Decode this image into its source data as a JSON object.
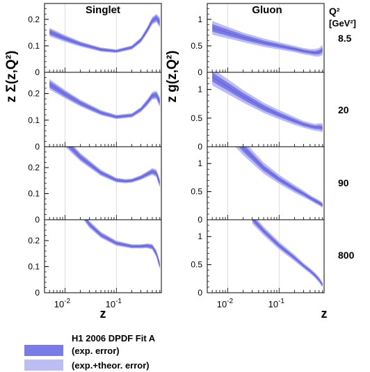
{
  "figure": {
    "left_ylabel": "z Σ(z,Q²)",
    "right_ylabel": "z g(z,Q²)",
    "q2_header_line1": "Q²",
    "q2_header_line2": "[GeV²]",
    "xlabel": "z",
    "left_title": "Singlet",
    "right_title": "Gluon",
    "legend_title": "H1 2006 DPDF Fit A",
    "legend_exp": "(exp. error)",
    "legend_theor": "(exp.+theor. error)"
  },
  "colors": {
    "inner_band": "#7b7be8",
    "outer_band": "#bdbdf5",
    "central_line": "#5a5ad0",
    "frame": "#000000",
    "grid": "#c8c8c8"
  },
  "chart_data": [
    {
      "type": "area",
      "title": "Singlet",
      "panel": "singlet",
      "q2": "8.5",
      "xscale": "log",
      "xlim": [
        0.004,
        0.75
      ],
      "ylim": [
        0,
        0.26
      ],
      "yticks": [
        0,
        0.1,
        0.2
      ],
      "x": [
        0.005,
        0.01,
        0.02,
        0.05,
        0.1,
        0.2,
        0.3,
        0.4,
        0.5,
        0.6,
        0.7
      ],
      "central": [
        0.152,
        0.128,
        0.107,
        0.086,
        0.08,
        0.094,
        0.122,
        0.16,
        0.195,
        0.205,
        0.188
      ],
      "exp_err": [
        0.01,
        0.008,
        0.006,
        0.005,
        0.004,
        0.005,
        0.006,
        0.008,
        0.009,
        0.01,
        0.012
      ],
      "total_err": [
        0.016,
        0.013,
        0.01,
        0.008,
        0.007,
        0.008,
        0.01,
        0.012,
        0.014,
        0.016,
        0.02
      ]
    },
    {
      "type": "area",
      "title": "Gluon",
      "panel": "gluon",
      "q2": "8.5",
      "xscale": "log",
      "xlim": [
        0.004,
        0.75
      ],
      "ylim": [
        0,
        1.3
      ],
      "yticks": [
        0,
        0.5,
        1
      ],
      "x": [
        0.005,
        0.01,
        0.02,
        0.05,
        0.1,
        0.2,
        0.3,
        0.4,
        0.5,
        0.6,
        0.7
      ],
      "central": [
        0.84,
        0.75,
        0.66,
        0.56,
        0.5,
        0.44,
        0.4,
        0.38,
        0.37,
        0.38,
        0.42
      ],
      "exp_err": [
        0.07,
        0.06,
        0.05,
        0.04,
        0.035,
        0.03,
        0.03,
        0.03,
        0.035,
        0.04,
        0.05
      ],
      "total_err": [
        0.13,
        0.11,
        0.09,
        0.08,
        0.07,
        0.06,
        0.06,
        0.06,
        0.07,
        0.08,
        0.1
      ]
    },
    {
      "type": "area",
      "panel": "singlet",
      "q2": "20",
      "xscale": "log",
      "xlim": [
        0.004,
        0.75
      ],
      "ylim": [
        0,
        0.28
      ],
      "yticks": [
        0,
        0.1,
        0.2
      ],
      "x": [
        0.005,
        0.01,
        0.02,
        0.05,
        0.1,
        0.2,
        0.3,
        0.4,
        0.5,
        0.6,
        0.7
      ],
      "central": [
        0.235,
        0.198,
        0.164,
        0.128,
        0.112,
        0.118,
        0.14,
        0.167,
        0.192,
        0.195,
        0.168
      ],
      "exp_err": [
        0.012,
        0.01,
        0.008,
        0.006,
        0.005,
        0.005,
        0.006,
        0.008,
        0.009,
        0.01,
        0.012
      ],
      "total_err": [
        0.02,
        0.016,
        0.013,
        0.01,
        0.008,
        0.008,
        0.01,
        0.012,
        0.014,
        0.016,
        0.019
      ]
    },
    {
      "type": "area",
      "panel": "gluon",
      "q2": "20",
      "xscale": "log",
      "xlim": [
        0.004,
        0.75
      ],
      "ylim": [
        0,
        1.3
      ],
      "yticks": [
        0,
        0.5,
        1
      ],
      "x": [
        0.005,
        0.01,
        0.02,
        0.05,
        0.1,
        0.2,
        0.3,
        0.4,
        0.5,
        0.6,
        0.7
      ],
      "central": [
        1.22,
        1.05,
        0.88,
        0.68,
        0.56,
        0.45,
        0.39,
        0.36,
        0.34,
        0.34,
        0.33
      ],
      "exp_err": [
        0.08,
        0.07,
        0.06,
        0.05,
        0.04,
        0.035,
        0.03,
        0.03,
        0.03,
        0.035,
        0.04
      ],
      "total_err": [
        0.15,
        0.13,
        0.11,
        0.09,
        0.08,
        0.07,
        0.06,
        0.06,
        0.06,
        0.07,
        0.08
      ]
    },
    {
      "type": "area",
      "panel": "singlet",
      "q2": "90",
      "xscale": "log",
      "xlim": [
        0.004,
        0.75
      ],
      "ylim": [
        0,
        0.28
      ],
      "yticks": [
        0,
        0.1,
        0.2
      ],
      "x": [
        0.01,
        0.02,
        0.05,
        0.1,
        0.15,
        0.2,
        0.3,
        0.4,
        0.5,
        0.6,
        0.7
      ],
      "central": [
        0.3,
        0.24,
        0.18,
        0.152,
        0.148,
        0.15,
        0.162,
        0.175,
        0.185,
        0.178,
        0.14
      ],
      "exp_err": [
        0.012,
        0.01,
        0.007,
        0.006,
        0.005,
        0.005,
        0.006,
        0.007,
        0.008,
        0.009,
        0.011
      ],
      "total_err": [
        0.02,
        0.016,
        0.012,
        0.009,
        0.008,
        0.008,
        0.009,
        0.011,
        0.013,
        0.015,
        0.018
      ]
    },
    {
      "type": "area",
      "panel": "gluon",
      "q2": "90",
      "xscale": "log",
      "xlim": [
        0.004,
        0.75
      ],
      "ylim": [
        0,
        1.3
      ],
      "yticks": [
        0,
        0.5,
        1
      ],
      "x": [
        0.01,
        0.02,
        0.05,
        0.1,
        0.2,
        0.3,
        0.4,
        0.5,
        0.6,
        0.7
      ],
      "central": [
        1.6,
        1.28,
        0.92,
        0.72,
        0.55,
        0.46,
        0.39,
        0.34,
        0.3,
        0.26
      ],
      "exp_err": [
        0.08,
        0.07,
        0.05,
        0.04,
        0.035,
        0.03,
        0.03,
        0.03,
        0.03,
        0.03
      ],
      "total_err": [
        0.16,
        0.13,
        0.1,
        0.08,
        0.07,
        0.06,
        0.05,
        0.05,
        0.05,
        0.05
      ]
    },
    {
      "type": "area",
      "panel": "singlet",
      "q2": "800",
      "xscale": "log",
      "xlim": [
        0.004,
        0.75
      ],
      "ylim": [
        0,
        0.28
      ],
      "yticks": [
        0,
        0.1,
        0.2
      ],
      "x": [
        0.02,
        0.03,
        0.05,
        0.1,
        0.2,
        0.3,
        0.4,
        0.5,
        0.6,
        0.7
      ],
      "central": [
        0.31,
        0.262,
        0.222,
        0.19,
        0.178,
        0.178,
        0.18,
        0.176,
        0.15,
        0.105
      ],
      "exp_err": [
        0.01,
        0.008,
        0.007,
        0.006,
        0.005,
        0.005,
        0.006,
        0.007,
        0.008,
        0.01
      ],
      "total_err": [
        0.016,
        0.014,
        0.012,
        0.01,
        0.008,
        0.008,
        0.009,
        0.011,
        0.013,
        0.016
      ]
    },
    {
      "type": "area",
      "panel": "gluon",
      "q2": "800",
      "xscale": "log",
      "xlim": [
        0.004,
        0.75
      ],
      "ylim": [
        0,
        1.3
      ],
      "yticks": [
        0,
        0.5,
        1
      ],
      "x": [
        0.03,
        0.05,
        0.1,
        0.2,
        0.3,
        0.4,
        0.5,
        0.6,
        0.7
      ],
      "central": [
        1.32,
        1.1,
        0.84,
        0.62,
        0.48,
        0.39,
        0.31,
        0.23,
        0.14
      ],
      "exp_err": [
        0.05,
        0.04,
        0.035,
        0.03,
        0.025,
        0.025,
        0.025,
        0.025,
        0.025
      ],
      "total_err": [
        0.09,
        0.08,
        0.07,
        0.06,
        0.05,
        0.05,
        0.05,
        0.05,
        0.05
      ]
    }
  ],
  "axes": {
    "singlet_ticks": [
      "0",
      "0.1",
      "0.2"
    ],
    "gluon_ticks": [
      "0",
      "0.5",
      "1"
    ],
    "xtick_labels": [
      {
        "base": "10",
        "exp": "-2"
      },
      {
        "base": "10",
        "exp": "-1"
      }
    ]
  }
}
